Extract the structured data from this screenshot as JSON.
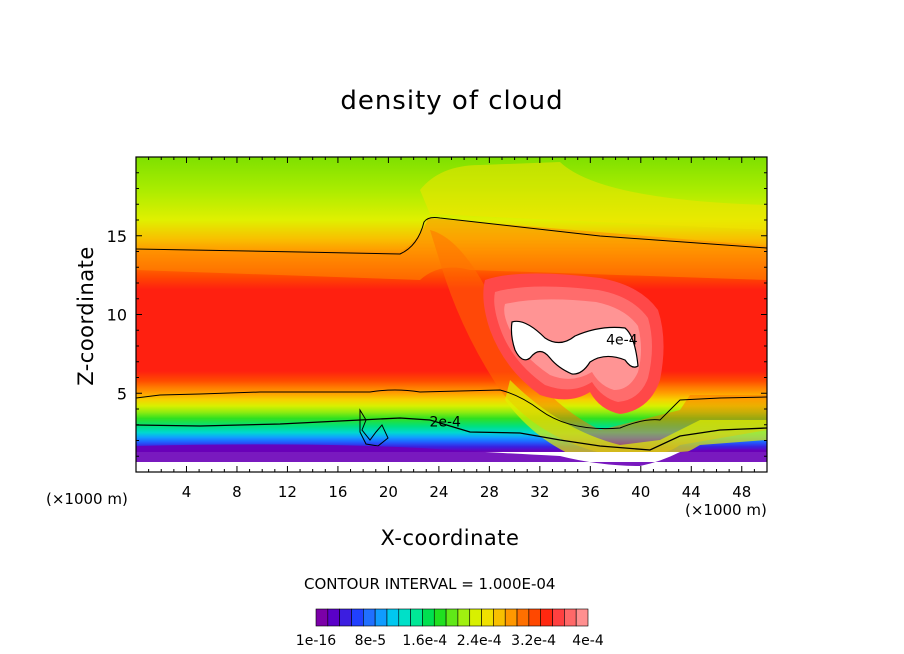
{
  "chart_data": {
    "type": "heatmap",
    "title": "density of cloud",
    "xlabel": "X-coordinate",
    "ylabel": "Z-coordinate",
    "x_unit_left": "(×1000 m)",
    "x_unit_right": "(×1000 m)",
    "xlim": [
      0,
      50
    ],
    "ylim": [
      0,
      20
    ],
    "x_ticks": [
      4,
      8,
      12,
      16,
      20,
      24,
      28,
      32,
      36,
      40,
      44,
      48
    ],
    "y_ticks": [
      5,
      10,
      15
    ],
    "contour_interval_text": "CONTOUR INTERVAL = 1.000E-04",
    "contour_labels": [
      {
        "text": "2e-4",
        "x": 24.5,
        "z": 2.9
      },
      {
        "text": "4e-4",
        "x": 38.5,
        "z": 8.1
      }
    ],
    "colorbar": {
      "labels": [
        "1e-16",
        "8e-5",
        "1.6e-4",
        "2.4e-4",
        "3.2e-4",
        "4e-4"
      ],
      "label_text": [
        "1e-16",
        "8e-5",
        "1.6e-4",
        "2.4e-4",
        "3.2e-4",
        "4e-4"
      ],
      "colors": [
        "#7b00a8",
        "#5a00c8",
        "#3c1ee0",
        "#2040ff",
        "#2070ff",
        "#109cff",
        "#00c8f0",
        "#00e0c8",
        "#00e896",
        "#00e050",
        "#20e020",
        "#60e818",
        "#a0f010",
        "#d8f000",
        "#f0e000",
        "#f8c000",
        "#ff9800",
        "#ff7000",
        "#ff4800",
        "#ff2810",
        "#ff4040",
        "#ff6868",
        "#ff9090"
      ]
    }
  }
}
